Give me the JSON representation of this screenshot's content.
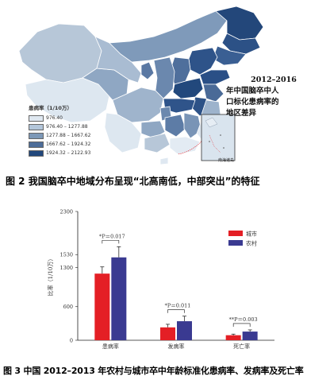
{
  "figure2": {
    "title_line1": "2012–2016",
    "title_line2": "年中国脑卒中人",
    "title_line3": "口标化患病率的",
    "title_line4": "地区差异",
    "legend_title": "患病率（1/10万）",
    "legend_items": [
      {
        "label": "976.40",
        "color": "#dfe8f1"
      },
      {
        "label": "976.40 – 1277.88",
        "color": "#b3c6da"
      },
      {
        "label": "1277.88 – 1667.62",
        "color": "#7d98b7"
      },
      {
        "label": "1667.62 – 1924.32",
        "color": "#4d6d99"
      },
      {
        "label": "1924.32 – 2122.93",
        "color": "#22487c"
      }
    ],
    "inset_note": "南海诸岛",
    "caption": "图 2  我国脑卒中地域分布呈现“北高南低，中部突出”的特征"
  },
  "chart_data": {
    "type": "bar",
    "categories": [
      "患病率",
      "发病率",
      "死亡率"
    ],
    "series": [
      {
        "name": "城市",
        "color": "#e41f25",
        "values": [
          1190,
          230,
          90
        ],
        "errors": [
          120,
          55,
          20
        ]
      },
      {
        "name": "农村",
        "color": "#3a3a91",
        "values": [
          1480,
          340,
          155
        ],
        "errors": [
          190,
          90,
          30
        ]
      }
    ],
    "ylabel": "比率（1/10万）",
    "ylim": [
      0,
      2300
    ],
    "yticks": [
      0,
      600,
      1300,
      1530,
      2300
    ],
    "ytick_labels": [
      "0",
      "600",
      "1300",
      "1530",
      "2300"
    ],
    "annotations": [
      "*P＝0.017",
      "*P＝0.011",
      "**P＝0.003"
    ],
    "legend_position": "top-right",
    "grid": false
  },
  "figure3": {
    "caption": "图 3  中国 2012–2013 年农村与城市卒中年龄标准化患病率、发病率及死亡率"
  }
}
